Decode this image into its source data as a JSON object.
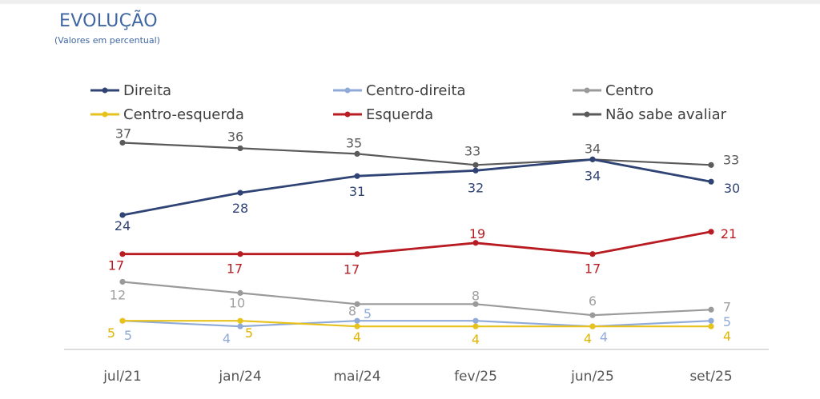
{
  "header": {
    "title": "EVOLUÇÃO",
    "subtitle": "(Valores em percentual)"
  },
  "chart_data": {
    "type": "line",
    "title": "EVOLUÇÃO",
    "subtitle": "(Valores em percentual)",
    "categories": [
      "jul/21",
      "jan/24",
      "mai/24",
      "fev/25",
      "jun/25",
      "set/25"
    ],
    "legend_placement": "top",
    "grid": false,
    "series": [
      {
        "name": "Direita",
        "color": "#2f4475",
        "values": [
          24,
          28,
          31,
          32,
          34,
          30
        ]
      },
      {
        "name": "Centro-direita",
        "color": "#8faad8",
        "values": [
          5,
          4,
          5,
          5,
          4,
          5
        ]
      },
      {
        "name": "Centro",
        "color": "#9a9a9a",
        "values": [
          12,
          10,
          8,
          8,
          6,
          7
        ]
      },
      {
        "name": "Centro-esquerda",
        "color": "#e8c21c",
        "values": [
          5,
          5,
          4,
          4,
          4,
          4
        ]
      },
      {
        "name": "Esquerda",
        "color": "#b81c22",
        "values": [
          17,
          17,
          17,
          19,
          17,
          21
        ]
      },
      {
        "name": "Não sabe avaliar",
        "color": "#5a5a5a",
        "values": [
          37,
          36,
          35,
          33,
          34,
          33
        ]
      }
    ]
  }
}
